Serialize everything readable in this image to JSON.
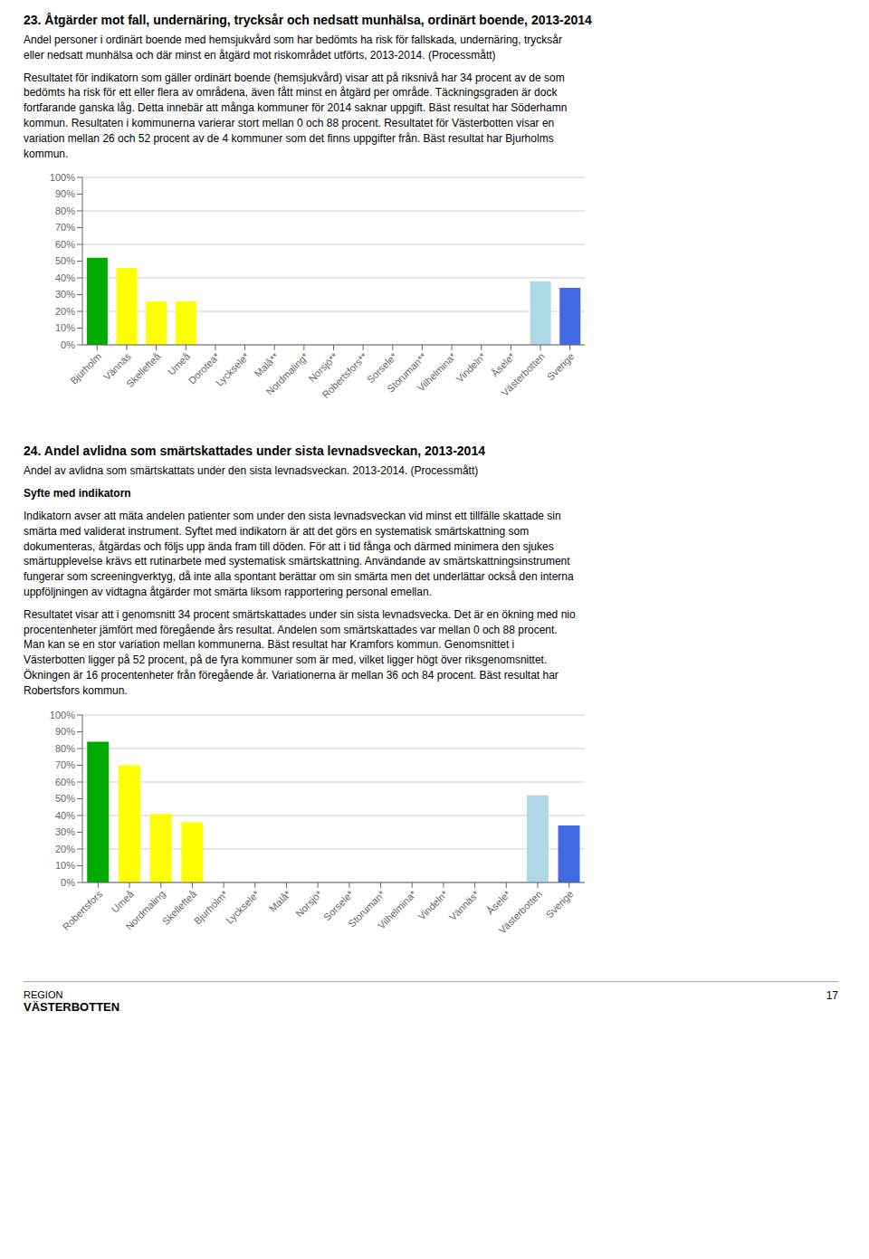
{
  "chart_data": [
    {
      "type": "bar",
      "title": "23. Åtgärder mot fall, undernäring, trycksår och nedsatt munhälsa, ordinärt boende, 2013-2014",
      "subtitle": "Andel personer i ordinärt boende med hemsjukvård som har bedömts ha risk för fallskada, undernäring, trycksår\neller nedsatt munhälsa och där minst en åtgärd mot riskområdet utförts, 2013-2014. (Processmått)",
      "annotations": [
        "Resultatet för indikatorn som gäller ordinärt boende (hemsjukvård) visar att på riksnivå har 34 procent av de som\nbedömts ha risk för ett eller flera av områdena, även fått minst en åtgärd per område. Täckningsgraden är dock\nfortfarande ganska låg. Detta innebär att många kommuner för 2014 saknar uppgift. Bäst resultat har Söderhamn\nkommun. Resultaten i kommunerna varierar stort mellan 0 och 88 procent. Resultatet för Västerbotten visar en\nvariation mellan 26 och 52 procent av de 4 kommuner som det finns uppgifter från. Bäst resultat har Bjurholms\nkommun."
      ],
      "categories": [
        "Bjurholm",
        "Vännäs",
        "Skellefteå",
        "Umeå",
        "Dorotea*",
        "Lycksele*",
        "Malå**",
        "Nordmaling*",
        "Norsjö**",
        "Robertsfors**",
        "Sorsele*",
        "Storuman**",
        "Vilhelmina*",
        "Vindeln*",
        "Åsele*",
        "Västerbotten",
        "Sverige"
      ],
      "values": [
        52,
        46,
        26,
        26,
        0,
        0,
        0,
        0,
        0,
        0,
        0,
        0,
        0,
        0,
        0,
        38,
        34
      ],
      "colors": [
        "#00aa00",
        "#ffff00",
        "#ffff00",
        "#ffff00",
        "#c0c0c0",
        "#c0c0c0",
        "#c0c0c0",
        "#c0c0c0",
        "#c0c0c0",
        "#c0c0c0",
        "#c0c0c0",
        "#c0c0c0",
        "#c0c0c0",
        "#c0c0c0",
        "#c0c0c0",
        "#add8e6",
        "#4169e1"
      ],
      "ylim": [
        0,
        100
      ],
      "yticks": [
        {
          "value": 0,
          "label": "0%"
        },
        {
          "value": 10,
          "label": "10%"
        },
        {
          "value": 20,
          "label": "20%"
        },
        {
          "value": 30,
          "label": "30%"
        },
        {
          "value": 40,
          "label": "40%"
        },
        {
          "value": 50,
          "label": "50%"
        },
        {
          "value": 60,
          "label": "60%"
        },
        {
          "value": 70,
          "label": "70%"
        },
        {
          "value": 80,
          "label": "80%"
        },
        {
          "value": 90,
          "label": "90%"
        },
        {
          "value": 100,
          "label": "100%"
        }
      ],
      "grid": true
    },
    {
      "type": "bar",
      "title": "24. Andel avlidna som smärtskattades under sista levnadsveckan, 2013-2014",
      "subtitle": "Andel av avlidna som smärtskattats under den sista levnadsveckan. 2013-2014. (Processmått)",
      "annotations": [
        "Syfte med indikatorn",
        "Indikatorn avser att mäta andelen patienter som under den sista levnadsveckan vid minst ett tillfälle skattade sin\nsmärta med validerat instrument. Syftet med indikatorn är att det görs en systematisk smärtskattning som\ndokumenteras, åtgärdas och följs upp ända fram till döden. För att i tid fånga och därmed minimera den sjukes\nsmärtupplevelse krävs ett rutinarbete med systematisk smärtskattning. Användande av smärtskattningsinstrument\nfungerar som screeningverktyg, då inte alla spontant berättar om sin smärta men det underlättar också den interna\nuppföljningen av vidtagna åtgärder mot smärta liksom rapportering personal emellan.",
        "Resultatet visar att i genomsnitt 34 procent smärtskattades under sin sista levnadsvecka. Det är en ökning med nio\nprocentenheter jämfört med föregående års resultat. Andelen som smärtskattades var mellan 0 och 88 procent.\nMan kan se en stor variation mellan kommunerna. Bäst resultat har Kramfors kommun. Genomsnittet i\nVästerbotten ligger på 52 procent, på de fyra kommuner som är med, vilket ligger högt över riksgenomsnittet.\nÖkningen är 16 procentenheter från föregående år. Variationerna är mellan 36 och 84 procent. Bäst resultat har\nRobertsfors kommun.",
        "17",
        "REGION",
        "VÄSTERBOTTEN"
      ],
      "categories": [
        "Robertsfors",
        "Umeå",
        "Nordmaling",
        "Skellefteå",
        "Bjurholm*",
        "Lycksele*",
        "Malå*",
        "Norsjö*",
        "Sorsele*",
        "Storuman*",
        "Vilhelmina*",
        "Vindeln*",
        "Vännäs*",
        "Åsele*",
        "Västerbotten",
        "Sverige"
      ],
      "values": [
        84,
        70,
        41,
        36,
        0,
        0,
        0,
        0,
        0,
        0,
        0,
        0,
        0,
        0,
        52,
        34
      ],
      "colors": [
        "#00aa00",
        "#ffff00",
        "#ffff00",
        "#ffff00",
        "#c0c0c0",
        "#c0c0c0",
        "#c0c0c0",
        "#c0c0c0",
        "#c0c0c0",
        "#c0c0c0",
        "#c0c0c0",
        "#c0c0c0",
        "#c0c0c0",
        "#c0c0c0",
        "#add8e6",
        "#4169e1"
      ],
      "ylim": [
        0,
        100
      ],
      "yticks": [
        {
          "value": 0,
          "label": "0%"
        },
        {
          "value": 10,
          "label": "10%"
        },
        {
          "value": 20,
          "label": "20%"
        },
        {
          "value": 30,
          "label": "30%"
        },
        {
          "value": 40,
          "label": "40%"
        },
        {
          "value": 50,
          "label": "50%"
        },
        {
          "value": 60,
          "label": "60%"
        },
        {
          "value": 70,
          "label": "70%"
        },
        {
          "value": 80,
          "label": "80%"
        },
        {
          "value": 90,
          "label": "90%"
        },
        {
          "value": 100,
          "label": "100%"
        }
      ],
      "grid": true
    }
  ]
}
